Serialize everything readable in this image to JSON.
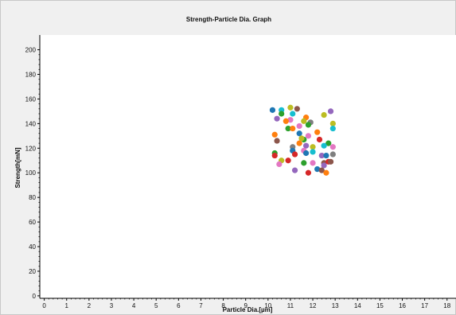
{
  "chart_data": {
    "type": "scatter",
    "title": "Strength-Particle Dia. Graph",
    "xlabel": "Particle Dia.[µm]",
    "ylabel": "Strength[mN]",
    "xlim": [
      -0.2,
      18.4
    ],
    "ylim": [
      -2,
      212
    ],
    "xticks": [
      0,
      1,
      2,
      3,
      4,
      5,
      6,
      7,
      8,
      9,
      10,
      11,
      12,
      13,
      14,
      15,
      16,
      17,
      18
    ],
    "yticks": [
      0,
      20,
      40,
      60,
      80,
      100,
      120,
      140,
      160,
      180,
      200
    ],
    "grid": false,
    "points": [
      {
        "x": 10.2,
        "y": 151,
        "color": "#1f77b4"
      },
      {
        "x": 10.6,
        "y": 151,
        "color": "#17becf"
      },
      {
        "x": 11.0,
        "y": 153,
        "color": "#bcbd22"
      },
      {
        "x": 11.3,
        "y": 152,
        "color": "#8c564b"
      },
      {
        "x": 12.8,
        "y": 150,
        "color": "#9467bd"
      },
      {
        "x": 10.6,
        "y": 148,
        "color": "#2ca02c"
      },
      {
        "x": 11.1,
        "y": 148,
        "color": "#17becf"
      },
      {
        "x": 12.5,
        "y": 147,
        "color": "#bcbd22"
      },
      {
        "x": 10.4,
        "y": 144,
        "color": "#9467bd"
      },
      {
        "x": 11.7,
        "y": 145,
        "color": "#ff7f0e"
      },
      {
        "x": 11.6,
        "y": 142,
        "color": "#bcbd22"
      },
      {
        "x": 11.0,
        "y": 143,
        "color": "#e377c2"
      },
      {
        "x": 10.8,
        "y": 142,
        "color": "#ff7f0e"
      },
      {
        "x": 11.9,
        "y": 141,
        "color": "#7f7f7f"
      },
      {
        "x": 11.8,
        "y": 139,
        "color": "#2ca02c"
      },
      {
        "x": 12.9,
        "y": 140,
        "color": "#bcbd22"
      },
      {
        "x": 11.4,
        "y": 138,
        "color": "#e377c2"
      },
      {
        "x": 12.9,
        "y": 136,
        "color": "#17becf"
      },
      {
        "x": 10.9,
        "y": 136,
        "color": "#2ca02c"
      },
      {
        "x": 11.1,
        "y": 136,
        "color": "#ff7f0e"
      },
      {
        "x": 10.3,
        "y": 131,
        "color": "#ff7f0e"
      },
      {
        "x": 11.4,
        "y": 132,
        "color": "#1f77b4"
      },
      {
        "x": 12.2,
        "y": 133,
        "color": "#ff7f0e"
      },
      {
        "x": 11.8,
        "y": 130,
        "color": "#e377c2"
      },
      {
        "x": 10.4,
        "y": 126,
        "color": "#8c564b"
      },
      {
        "x": 11.6,
        "y": 127,
        "color": "#2ca02c"
      },
      {
        "x": 11.5,
        "y": 128,
        "color": "#bcbd22"
      },
      {
        "x": 12.3,
        "y": 127,
        "color": "#d62728"
      },
      {
        "x": 12.7,
        "y": 124,
        "color": "#2ca02c"
      },
      {
        "x": 12.5,
        "y": 122,
        "color": "#17becf"
      },
      {
        "x": 11.4,
        "y": 124,
        "color": "#ff7f0e"
      },
      {
        "x": 11.7,
        "y": 122,
        "color": "#9467bd"
      },
      {
        "x": 11.1,
        "y": 121,
        "color": "#7f7f7f"
      },
      {
        "x": 12.0,
        "y": 121,
        "color": "#bcbd22"
      },
      {
        "x": 12.9,
        "y": 121,
        "color": "#e377c2"
      },
      {
        "x": 11.6,
        "y": 118,
        "color": "#e377c2"
      },
      {
        "x": 11.1,
        "y": 118,
        "color": "#1f77b4"
      },
      {
        "x": 11.7,
        "y": 116,
        "color": "#1f77b4"
      },
      {
        "x": 12.0,
        "y": 117,
        "color": "#17becf"
      },
      {
        "x": 10.3,
        "y": 116,
        "color": "#2ca02c"
      },
      {
        "x": 10.3,
        "y": 114,
        "color": "#d62728"
      },
      {
        "x": 11.2,
        "y": 115,
        "color": "#d62728"
      },
      {
        "x": 12.4,
        "y": 114,
        "color": "#9467bd"
      },
      {
        "x": 12.6,
        "y": 114,
        "color": "#1f77b4"
      },
      {
        "x": 12.9,
        "y": 115,
        "color": "#7f7f7f"
      },
      {
        "x": 10.6,
        "y": 110,
        "color": "#bcbd22"
      },
      {
        "x": 10.9,
        "y": 110,
        "color": "#d62728"
      },
      {
        "x": 11.6,
        "y": 108,
        "color": "#2ca02c"
      },
      {
        "x": 12.0,
        "y": 108,
        "color": "#e377c2"
      },
      {
        "x": 12.5,
        "y": 108,
        "color": "#8c564b"
      },
      {
        "x": 12.7,
        "y": 109,
        "color": "#d62728"
      },
      {
        "x": 12.8,
        "y": 109,
        "color": "#8c564b"
      },
      {
        "x": 10.5,
        "y": 107,
        "color": "#e377c2"
      },
      {
        "x": 12.5,
        "y": 106,
        "color": "#9467bd"
      },
      {
        "x": 11.2,
        "y": 102,
        "color": "#9467bd"
      },
      {
        "x": 12.2,
        "y": 103,
        "color": "#1f77b4"
      },
      {
        "x": 11.8,
        "y": 100,
        "color": "#d62728"
      },
      {
        "x": 12.4,
        "y": 102,
        "color": "#8c564b"
      },
      {
        "x": 12.6,
        "y": 100,
        "color": "#ff7f0e"
      }
    ]
  },
  "colors": {
    "background": "#ffffff",
    "frame": "#f0f0f0",
    "axis": "#000000",
    "text": "#111111"
  }
}
